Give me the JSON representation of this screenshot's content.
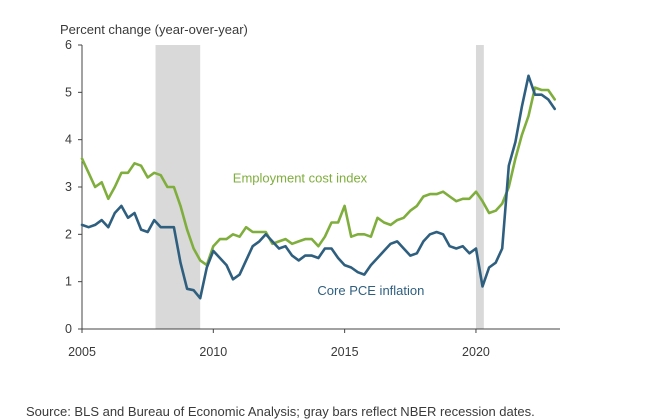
{
  "chart_data": {
    "type": "line",
    "ylabel": "Percent change (year-over-year)",
    "xlim": [
      2005,
      2023.2
    ],
    "ylim": [
      0,
      6
    ],
    "yticks": [
      0,
      1,
      2,
      3,
      4,
      5,
      6
    ],
    "xticks": [
      2005,
      2010,
      2015,
      2020
    ],
    "recessions": [
      {
        "start": 2007.8,
        "end": 2009.5
      },
      {
        "start": 2020.0,
        "end": 2020.3
      }
    ],
    "recession_color": "#d9d9d9",
    "series": [
      {
        "name": "Employment cost index",
        "color": "#7fae3d",
        "x": [
          2005.0,
          2005.25,
          2005.5,
          2005.75,
          2006.0,
          2006.25,
          2006.5,
          2006.75,
          2007.0,
          2007.25,
          2007.5,
          2007.75,
          2008.0,
          2008.25,
          2008.5,
          2008.75,
          2009.0,
          2009.25,
          2009.5,
          2009.75,
          2010.0,
          2010.25,
          2010.5,
          2010.75,
          2011.0,
          2011.25,
          2011.5,
          2011.75,
          2012.0,
          2012.25,
          2012.5,
          2012.75,
          2013.0,
          2013.25,
          2013.5,
          2013.75,
          2014.0,
          2014.25,
          2014.5,
          2014.75,
          2015.0,
          2015.25,
          2015.5,
          2015.75,
          2016.0,
          2016.25,
          2016.5,
          2016.75,
          2017.0,
          2017.25,
          2017.5,
          2017.75,
          2018.0,
          2018.25,
          2018.5,
          2018.75,
          2019.0,
          2019.25,
          2019.5,
          2019.75,
          2020.0,
          2020.25,
          2020.5,
          2020.75,
          2021.0,
          2021.25,
          2021.5,
          2021.75,
          2022.0,
          2022.25,
          2022.5,
          2022.75,
          2023.0
        ],
        "values": [
          3.6,
          3.3,
          3.0,
          3.1,
          2.75,
          3.0,
          3.3,
          3.3,
          3.5,
          3.45,
          3.2,
          3.3,
          3.25,
          3.0,
          3.0,
          2.6,
          2.1,
          1.7,
          1.45,
          1.35,
          1.75,
          1.9,
          1.9,
          2.0,
          1.95,
          2.15,
          2.05,
          2.05,
          2.05,
          1.8,
          1.85,
          1.9,
          1.8,
          1.85,
          1.9,
          1.9,
          1.75,
          1.95,
          2.25,
          2.25,
          2.6,
          1.95,
          2.0,
          2.0,
          1.95,
          2.35,
          2.25,
          2.2,
          2.3,
          2.35,
          2.5,
          2.6,
          2.8,
          2.85,
          2.85,
          2.9,
          2.8,
          2.7,
          2.75,
          2.75,
          2.9,
          2.7,
          2.45,
          2.5,
          2.65,
          3.0,
          3.6,
          4.1,
          4.5,
          5.1,
          5.05,
          5.05,
          4.85
        ]
      },
      {
        "name": "Core PCE inflation",
        "color": "#2f5f7f",
        "x": [
          2005.0,
          2005.25,
          2005.5,
          2005.75,
          2006.0,
          2006.25,
          2006.5,
          2006.75,
          2007.0,
          2007.25,
          2007.5,
          2007.75,
          2008.0,
          2008.25,
          2008.5,
          2008.75,
          2009.0,
          2009.25,
          2009.5,
          2009.75,
          2010.0,
          2010.25,
          2010.5,
          2010.75,
          2011.0,
          2011.25,
          2011.5,
          2011.75,
          2012.0,
          2012.25,
          2012.5,
          2012.75,
          2013.0,
          2013.25,
          2013.5,
          2013.75,
          2014.0,
          2014.25,
          2014.5,
          2014.75,
          2015.0,
          2015.25,
          2015.5,
          2015.75,
          2016.0,
          2016.25,
          2016.5,
          2016.75,
          2017.0,
          2017.25,
          2017.5,
          2017.75,
          2018.0,
          2018.25,
          2018.5,
          2018.75,
          2019.0,
          2019.25,
          2019.5,
          2019.75,
          2020.0,
          2020.25,
          2020.5,
          2020.75,
          2021.0,
          2021.25,
          2021.5,
          2021.75,
          2022.0,
          2022.25,
          2022.5,
          2022.75,
          2023.0
        ],
        "values": [
          2.2,
          2.15,
          2.2,
          2.3,
          2.15,
          2.45,
          2.6,
          2.35,
          2.45,
          2.1,
          2.05,
          2.3,
          2.15,
          2.15,
          2.15,
          1.4,
          0.85,
          0.82,
          0.65,
          1.3,
          1.65,
          1.5,
          1.35,
          1.05,
          1.15,
          1.45,
          1.75,
          1.85,
          2.0,
          1.85,
          1.7,
          1.75,
          1.55,
          1.45,
          1.55,
          1.55,
          1.5,
          1.7,
          1.7,
          1.5,
          1.35,
          1.3,
          1.2,
          1.15,
          1.35,
          1.5,
          1.65,
          1.8,
          1.85,
          1.7,
          1.55,
          1.6,
          1.85,
          2.0,
          2.05,
          2.0,
          1.75,
          1.7,
          1.75,
          1.6,
          1.7,
          0.9,
          1.3,
          1.4,
          1.7,
          3.45,
          3.95,
          4.7,
          5.35,
          4.95,
          4.95,
          4.85,
          4.65
        ]
      }
    ],
    "annotations": [
      {
        "text": "Employment cost index",
        "series": 0,
        "x": 2013.3,
        "y": 3.1
      },
      {
        "text": "Core PCE inflation",
        "series": 1,
        "x": 2016.0,
        "y": 0.72
      }
    ]
  },
  "source_text": "Source: BLS and Bureau of Economic Analysis; gray bars reflect NBER recession dates."
}
